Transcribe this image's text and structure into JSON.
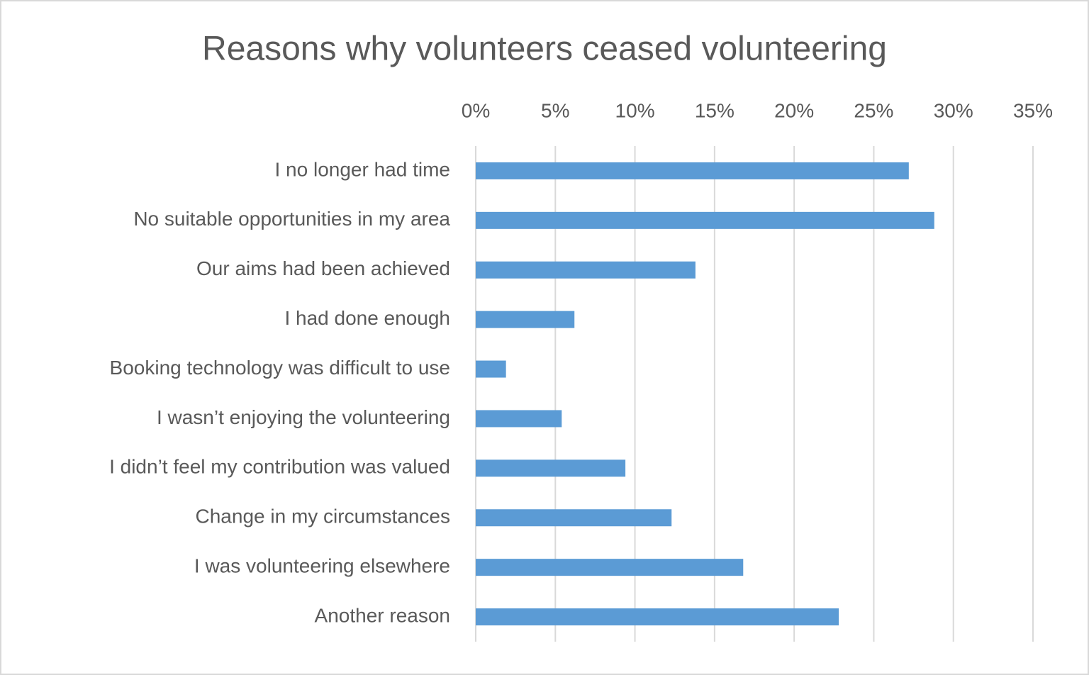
{
  "chart_data": {
    "type": "barh",
    "title": "Reasons why volunteers ceased volunteering",
    "categories": [
      "I no longer had time",
      "No suitable opportunities in my area",
      "Our aims had been achieved",
      "I had done enough",
      "Booking technology was difficult to use",
      "I wasn’t enjoying the volunteering",
      "I didn’t feel my contribution was valued",
      "Change in my circumstances",
      "I was volunteering elsewhere",
      "Another reason"
    ],
    "values": [
      27.2,
      28.8,
      13.8,
      6.2,
      1.9,
      5.4,
      9.4,
      12.3,
      16.8,
      22.8
    ],
    "color": "#5b9bd5",
    "xlim": [
      0,
      35
    ],
    "xticks": [
      {
        "value": 0,
        "label": "0%"
      },
      {
        "value": 5,
        "label": "5%"
      },
      {
        "value": 10,
        "label": "10%"
      },
      {
        "value": 15,
        "label": "15%"
      },
      {
        "value": 20,
        "label": "20%"
      },
      {
        "value": 25,
        "label": "25%"
      },
      {
        "value": 30,
        "label": "30%"
      },
      {
        "value": 35,
        "label": "35%"
      }
    ],
    "grid": true
  }
}
